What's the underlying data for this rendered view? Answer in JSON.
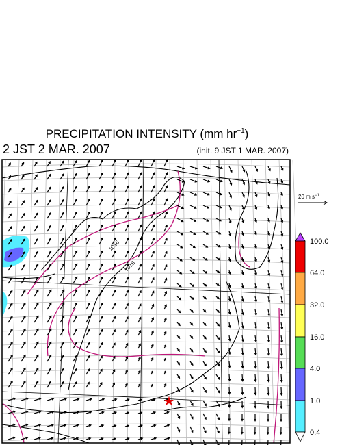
{
  "title": {
    "main": "PRECIPITATION INTENSITY (mm hr",
    "exponent": "−1",
    "close": ")"
  },
  "valid_time": "2 JST 2 MAR. 2007",
  "init_time": "(init. 9 JST 1 MAR. 2007)",
  "wind_scale": {
    "main": "20 m s",
    "exponent": "−1"
  },
  "contour_labels": [
    "1016",
    "1018"
  ],
  "colorbar": {
    "labels": [
      "100.0",
      "64.0",
      "32.0",
      "16.0",
      "4.0",
      "1.0",
      "0.4"
    ]
  }
}
